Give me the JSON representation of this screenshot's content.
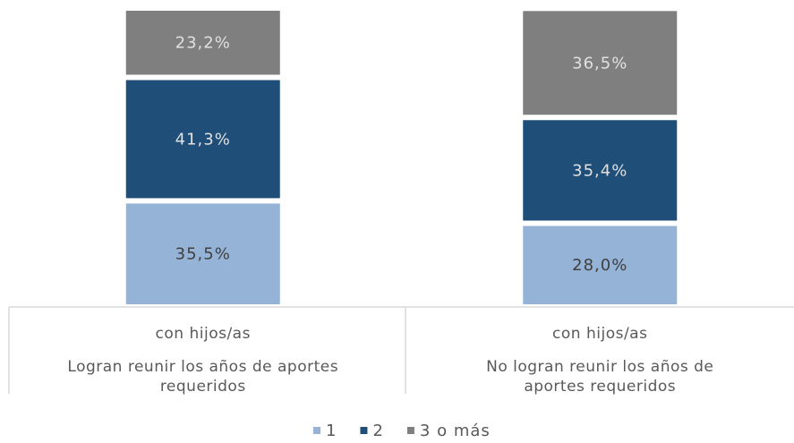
{
  "chart_data": {
    "type": "stacked_bar",
    "categories": [
      "Logran reunir los años de aportes requeridos",
      "No logran reunir los años de aportes requeridos"
    ],
    "category_sublabels": [
      "con hijos/as",
      "con hijos/as"
    ],
    "series": [
      {
        "name": "1",
        "color": "#95b3d7",
        "values": [
          35.5,
          28.0
        ],
        "value_labels": [
          "35,5%",
          "28,0%"
        ]
      },
      {
        "name": "2",
        "color": "#1f4e79",
        "values": [
          41.3,
          35.4
        ],
        "value_labels": [
          "41,3%",
          "35,4%"
        ]
      },
      {
        "name": "3 o más",
        "color": "#7f7f7f",
        "values": [
          23.2,
          36.5
        ],
        "value_labels": [
          "23,2%",
          "36,5%"
        ]
      }
    ],
    "ylim": [
      0,
      100
    ],
    "legend": "bottom"
  }
}
